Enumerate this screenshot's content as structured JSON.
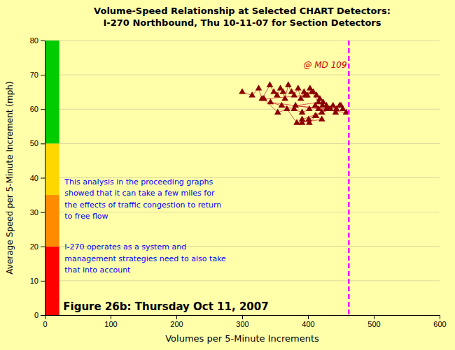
{
  "chart_data": {
    "type": "scatter",
    "title": "Volume-Speed Relationship at Selected CHART Detectors:\nI-270 Northbound, Thu 10-11-07 for Section Detectors",
    "x_label": "Volumes per 5-Minute Increments",
    "y_label": "Average Speed per 5-Minute Increment (mph)",
    "xlim": [
      0,
      600
    ],
    "ylim": [
      0,
      80
    ],
    "xticks": [
      0,
      100,
      200,
      300,
      400,
      500,
      600
    ],
    "yticks": [
      0,
      10,
      20,
      30,
      40,
      50,
      60,
      70,
      80
    ],
    "grid": "y",
    "background_color": "#FFFFAA",
    "x": [
      300,
      315,
      325,
      330,
      342,
      348,
      353,
      358,
      362,
      365,
      370,
      375,
      379,
      385,
      389,
      394,
      399,
      403,
      408,
      413,
      418,
      423,
      428,
      433,
      438,
      443,
      448,
      453,
      458,
      343,
      360,
      379,
      391,
      402,
      411,
      416,
      422,
      428,
      434,
      442,
      450,
      391,
      402,
      412,
      421,
      383,
      368,
      354,
      333,
      396,
      406,
      416,
      381,
      431,
      421,
      411,
      401,
      391
    ],
    "series": [
      {
        "type": "line",
        "color": "#CC3333",
        "line_style": "solid",
        "values": [
          65,
          64,
          66,
          63,
          67,
          65,
          64,
          66,
          65,
          63,
          67,
          65,
          64,
          66,
          63,
          65,
          64,
          66,
          65,
          64,
          63,
          62,
          61,
          60,
          61,
          60,
          61,
          60,
          59,
          62,
          61,
          60,
          59,
          60,
          61,
          60,
          61,
          60,
          60,
          59,
          61,
          57,
          56,
          58,
          57,
          56,
          60,
          59,
          63,
          64,
          65,
          62,
          61,
          60,
          59,
          58,
          57,
          56
        ]
      },
      {
        "type": "scatter",
        "color": "#8B0000",
        "marker": "triangle",
        "values": [
          65,
          64,
          66,
          63,
          67,
          65,
          64,
          66,
          65,
          63,
          67,
          65,
          64,
          66,
          63,
          65,
          64,
          66,
          65,
          64,
          63,
          62,
          61,
          60,
          61,
          60,
          61,
          60,
          59,
          62,
          61,
          60,
          59,
          60,
          61,
          60,
          61,
          60,
          60,
          59,
          61,
          57,
          56,
          58,
          57,
          56,
          60,
          59,
          63,
          64,
          65,
          62,
          61,
          60,
          59,
          58,
          57,
          56
        ]
      }
    ],
    "zones": [
      {
        "ymin": 0,
        "ymax": 20,
        "color": "#FF0000"
      },
      {
        "ymin": 20,
        "ymax": 35,
        "color": "#FF8C00"
      },
      {
        "ymin": 35,
        "ymax": 50,
        "color": "#FFD700"
      },
      {
        "ymin": 50,
        "ymax": 80,
        "color": "#00CC00"
      }
    ],
    "zone_xmax": 22,
    "vlines": [
      {
        "x": 462,
        "color": "#FF00FF",
        "line_style": "dashed"
      }
    ],
    "annotations": [
      {
        "text": "@ MD 109",
        "x": 393,
        "y": 72,
        "color": "#CC0000"
      }
    ],
    "notes": [
      {
        "text": "This analysis in the proceeding graphs\nshowed that it can take a few miles for\nthe effects of traffic congestion to return\nto free flow",
        "x": 30,
        "y": 40,
        "color": "blue"
      },
      {
        "text": "I-270 operates as a system and\nmanagement strategies need to also take\nthat into account",
        "x": 30,
        "y": 21,
        "color": "blue"
      }
    ],
    "figure_label": {
      "text": "Figure 26b: Thursday Oct 11, 2007",
      "x": 28,
      "y": 1.5
    }
  }
}
